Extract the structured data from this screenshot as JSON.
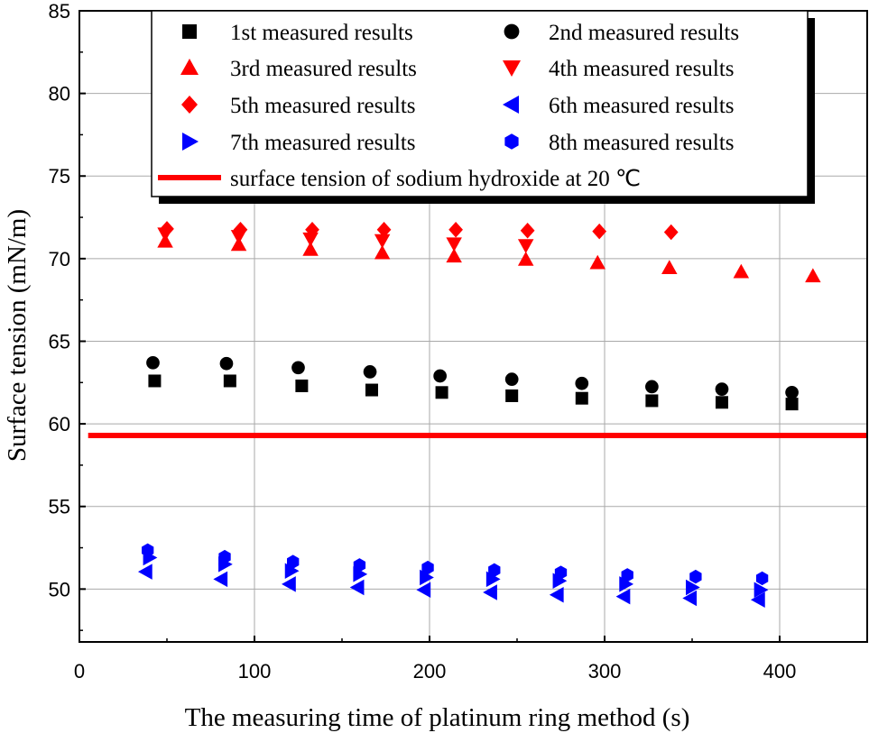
{
  "chart_data": {
    "type": "scatter",
    "xlabel": "The measuring time of platinum ring method (s)",
    "ylabel": "Surface tension (mN/m)",
    "xlim": [
      0,
      450
    ],
    "ylim": [
      46.8,
      85
    ],
    "xticks": [
      0,
      100,
      200,
      300,
      400
    ],
    "yticks": [
      50,
      55,
      60,
      65,
      70,
      75,
      80,
      85
    ],
    "xtick_labels": [
      "0",
      "100",
      "200",
      "300",
      "400"
    ],
    "ytick_labels": [
      "50",
      "55",
      "60",
      "65",
      "70",
      "75",
      "80",
      "85"
    ],
    "grid": true,
    "legend_position": "top",
    "series": [
      {
        "name": "1st measured results",
        "marker": "square",
        "color": "#000000",
        "x": [
          43,
          86,
          127,
          167,
          207,
          247,
          287,
          327,
          367,
          407
        ],
        "y": [
          62.6,
          62.6,
          62.3,
          62.05,
          61.9,
          61.7,
          61.55,
          61.4,
          61.3,
          61.2
        ]
      },
      {
        "name": "2nd measured results",
        "marker": "circle",
        "color": "#000000",
        "x": [
          42,
          84,
          125,
          166,
          206,
          247,
          287,
          327,
          367,
          407
        ],
        "y": [
          63.7,
          63.65,
          63.4,
          63.15,
          62.9,
          62.7,
          62.45,
          62.25,
          62.1,
          61.9
        ]
      },
      {
        "name": "3rd measured results",
        "marker": "triangle-up",
        "color": "#ff0000",
        "x": [
          49,
          91,
          132,
          173,
          214,
          255,
          296,
          337,
          378,
          419
        ],
        "y": [
          71.05,
          70.85,
          70.55,
          70.35,
          70.15,
          69.95,
          69.75,
          69.45,
          69.2,
          68.95
        ]
      },
      {
        "name": "4th measured results",
        "marker": "triangle-down",
        "color": "#ff0000",
        "x": [
          49,
          91,
          132,
          173,
          214,
          255
        ],
        "y": [
          71.5,
          71.35,
          71.2,
          71.1,
          70.9,
          70.8
        ]
      },
      {
        "name": "5th measured results",
        "marker": "diamond",
        "color": "#ff0000",
        "x": [
          50,
          92,
          133,
          174,
          215,
          256,
          297,
          338
        ],
        "y": [
          71.8,
          71.75,
          71.75,
          71.75,
          71.75,
          71.7,
          71.65,
          71.6
        ]
      },
      {
        "name": "6th measured results",
        "marker": "triangle-left",
        "color": "#0000ff",
        "x": [
          38,
          81,
          120,
          159,
          197,
          235,
          273,
          311,
          349,
          388
        ],
        "y": [
          51.05,
          50.6,
          50.3,
          50.1,
          49.95,
          49.8,
          49.65,
          49.55,
          49.45,
          49.35
        ]
      },
      {
        "name": "7th measured results",
        "marker": "triangle-right",
        "color": "#0000ff",
        "x": [
          40,
          83,
          121,
          160,
          198,
          236,
          274,
          312,
          350,
          389
        ],
        "y": [
          51.9,
          51.5,
          51.1,
          50.9,
          50.7,
          50.6,
          50.5,
          50.3,
          50.1,
          49.95
        ]
      },
      {
        "name": "8th measured results",
        "marker": "hexagon",
        "color": "#0000ff",
        "x": [
          39,
          83,
          122,
          160,
          199,
          237,
          275,
          313,
          352,
          390
        ],
        "y": [
          52.35,
          51.95,
          51.65,
          51.45,
          51.3,
          51.15,
          51.0,
          50.85,
          50.75,
          50.65
        ]
      }
    ],
    "reference_line": {
      "name": "surface tension of sodium hydroxide at 20 ℃",
      "y": 59.3,
      "x_range": [
        5,
        450
      ],
      "color": "#ff0000"
    }
  }
}
